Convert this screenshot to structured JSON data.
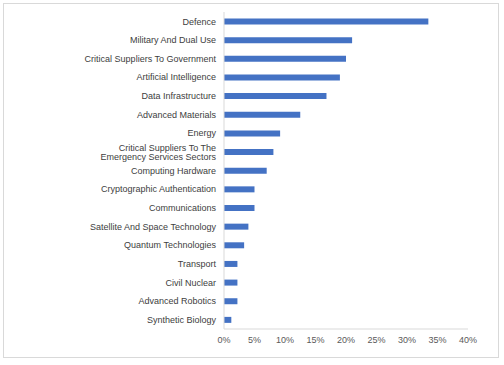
{
  "chart_data": {
    "type": "bar",
    "orientation": "horizontal",
    "color": "#4472c4",
    "grid": false,
    "categories": [
      "Defence",
      "Military And Dual Use",
      "Critical Suppliers To Government",
      "Artificial Intelligence",
      "Data Infrastructure",
      "Advanced Materials",
      "Energy",
      "Critical Suppliers To The Emergency Services Sectors",
      "Computing Hardware",
      "Cryptographic Authentication",
      "Communications",
      "Satellite And Space Technology",
      "Quantum Technologies",
      "Transport",
      "Civil Nuclear",
      "Advanced Robotics",
      "Synthetic Biology"
    ],
    "values": [
      33.5,
      21,
      20,
      19,
      16.8,
      12.5,
      9.2,
      8.1,
      7,
      5,
      5,
      4,
      3.3,
      2.2,
      2.2,
      2.2,
      1.2
    ],
    "xlim": [
      0,
      40
    ],
    "xticks": [
      {
        "value": 0,
        "label": "0%"
      },
      {
        "value": 5,
        "label": "5%"
      },
      {
        "value": 10,
        "label": "10%"
      },
      {
        "value": 15,
        "label": "15%"
      },
      {
        "value": 20,
        "label": "20%"
      },
      {
        "value": 25,
        "label": "25%"
      },
      {
        "value": 30,
        "label": "30%"
      },
      {
        "value": 35,
        "label": "35%"
      },
      {
        "value": 40,
        "label": "40%"
      }
    ]
  }
}
